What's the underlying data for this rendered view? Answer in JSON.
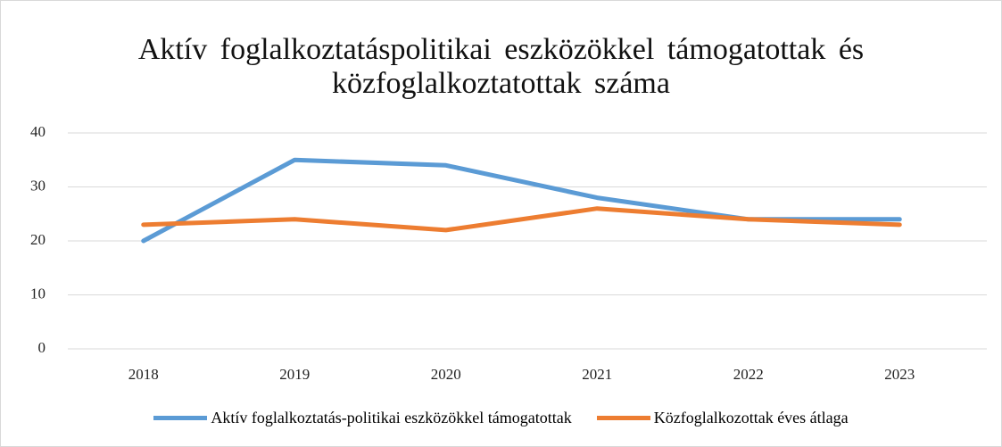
{
  "chart_data": {
    "type": "line",
    "title": "Aktív foglalkoztatáspolitikai eszközökkel támogatottak és közfoglalkoztatottak száma",
    "categories": [
      "2018",
      "2019",
      "2020",
      "2021",
      "2022",
      "2023"
    ],
    "series": [
      {
        "name": "Aktív foglalkoztatás-politikai eszközökkel támogatottak",
        "color": "#5b9bd5",
        "values": [
          20,
          35,
          34,
          28,
          24,
          24
        ]
      },
      {
        "name": "Közfoglalkozottak éves átlaga",
        "color": "#ed7d31",
        "values": [
          23,
          24,
          22,
          26,
          24,
          23
        ]
      }
    ],
    "ylim": [
      0,
      40
    ],
    "yticks": [
      0,
      10,
      20,
      30,
      40
    ],
    "grid": true,
    "legend": "bottom"
  }
}
